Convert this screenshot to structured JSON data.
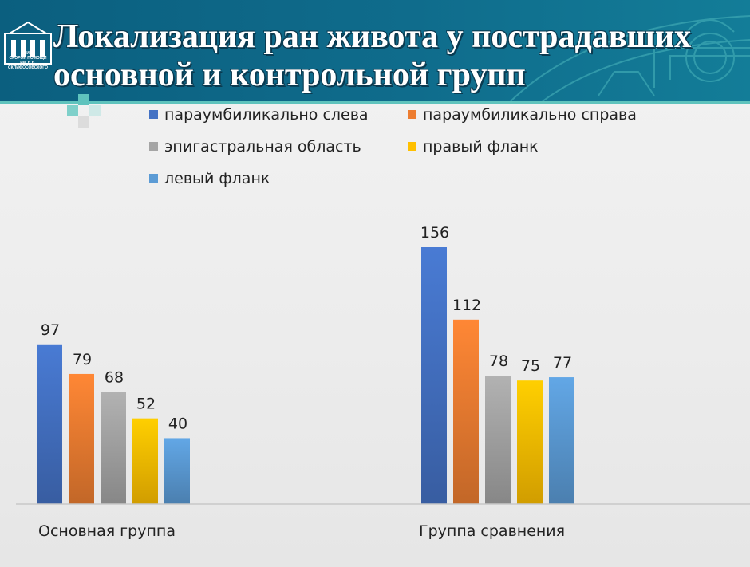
{
  "slide": {
    "title_line1": "Локализация ран  живота у пострадавших",
    "title_line2": "основной и контрольной групп",
    "logo_text_line1": "НИИ",
    "logo_text_line2": "СКОРОЙ ПОМОЩИ",
    "logo_text_line3": "им. Н.В. СКЛИФОСОВСКОГО",
    "colors": {
      "header": "#0f6c8c",
      "accent": "#5fc3bd",
      "background": "#eeeeee"
    }
  },
  "chart_data": {
    "type": "bar",
    "title": "",
    "xlabel": "",
    "ylabel": "",
    "ylim": [
      0,
      160
    ],
    "grid": false,
    "legend_position": "top",
    "categories": [
      "Основная группа",
      "Группа сравнения"
    ],
    "series": [
      {
        "name": "параумбиликально слева",
        "values": [
          97,
          156
        ],
        "color": "#4472c4"
      },
      {
        "name": "параумбиликально справа",
        "values": [
          79,
          112
        ],
        "color": "#ed7d31"
      },
      {
        "name": "эпигастральная область",
        "values": [
          68,
          78
        ],
        "color": "#a5a5a5"
      },
      {
        "name": "правый фланк",
        "values": [
          52,
          75
        ],
        "color": "#ffc000"
      },
      {
        "name": "левый фланк",
        "values": [
          40,
          77
        ],
        "color": "#5b9bd5"
      }
    ]
  }
}
